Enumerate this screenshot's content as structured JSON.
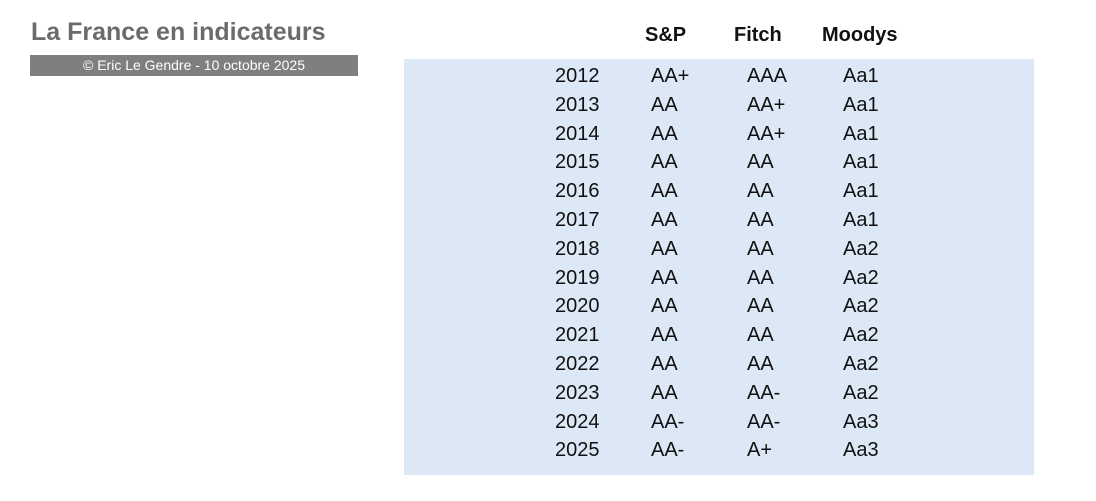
{
  "header": {
    "title": "La France en indicateurs",
    "credit": "© Eric Le Gendre -  10 octobre 2025"
  },
  "table": {
    "columns": [
      "S&P",
      "Fitch",
      "Moodys"
    ],
    "rows": [
      [
        "2012",
        "AA+",
        "AAA",
        "Aa1"
      ],
      [
        "2013",
        "AA",
        "AA+",
        "Aa1"
      ],
      [
        "2014",
        "AA",
        "AA+",
        "Aa1"
      ],
      [
        "2015",
        "AA",
        "AA",
        "Aa1"
      ],
      [
        "2016",
        "AA",
        "AA",
        "Aa1"
      ],
      [
        "2017",
        "AA",
        "AA",
        "Aa1"
      ],
      [
        "2018",
        "AA",
        "AA",
        "Aa2"
      ],
      [
        "2019",
        "AA",
        "AA",
        "Aa2"
      ],
      [
        "2020",
        "AA",
        "AA",
        "Aa2"
      ],
      [
        "2021",
        "AA",
        "AA",
        "Aa2"
      ],
      [
        "2022",
        "AA",
        "AA",
        "Aa2"
      ],
      [
        "2023",
        "AA",
        "AA-",
        "Aa2"
      ],
      [
        "2024",
        "AA-",
        "AA-",
        "Aa3"
      ],
      [
        "2025",
        "AA-",
        "A+",
        "Aa3"
      ]
    ]
  }
}
